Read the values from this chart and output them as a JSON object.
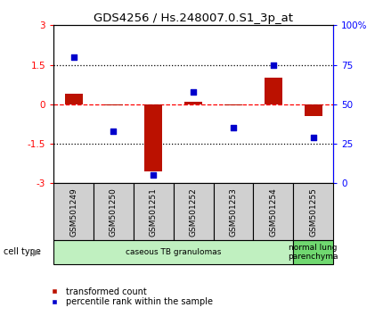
{
  "title": "GDS4256 / Hs.248007.0.S1_3p_at",
  "samples": [
    "GSM501249",
    "GSM501250",
    "GSM501251",
    "GSM501252",
    "GSM501253",
    "GSM501254",
    "GSM501255"
  ],
  "red_values": [
    0.4,
    -0.05,
    -2.55,
    0.08,
    -0.05,
    1.0,
    -0.45
  ],
  "blue_values": [
    80,
    33,
    5,
    58,
    35,
    75,
    29
  ],
  "cell_types": [
    {
      "label": "caseous TB granulomas",
      "start": 0,
      "end": 6,
      "color": "#c0f0c0"
    },
    {
      "label": "normal lung\nparenchyma",
      "start": 6,
      "end": 7,
      "color": "#70d870"
    }
  ],
  "ylim": [
    -3,
    3
  ],
  "y2lim": [
    0,
    100
  ],
  "yticks": [
    -3,
    -1.5,
    0,
    1.5,
    3
  ],
  "ytick_labels": [
    "-3",
    "-1.5",
    "0",
    "1.5",
    "3"
  ],
  "y2ticks": [
    0,
    25,
    50,
    75,
    100
  ],
  "y2tick_labels": [
    "0",
    "25",
    "50",
    "75",
    "100%"
  ],
  "hlines_dotted": [
    1.5,
    -1.5
  ],
  "hline_red_dash": 0,
  "bar_color": "#bb1100",
  "dot_color": "#0000cc",
  "legend_red_label": "transformed count",
  "legend_blue_label": "percentile rank within the sample",
  "cell_type_label": "cell type"
}
